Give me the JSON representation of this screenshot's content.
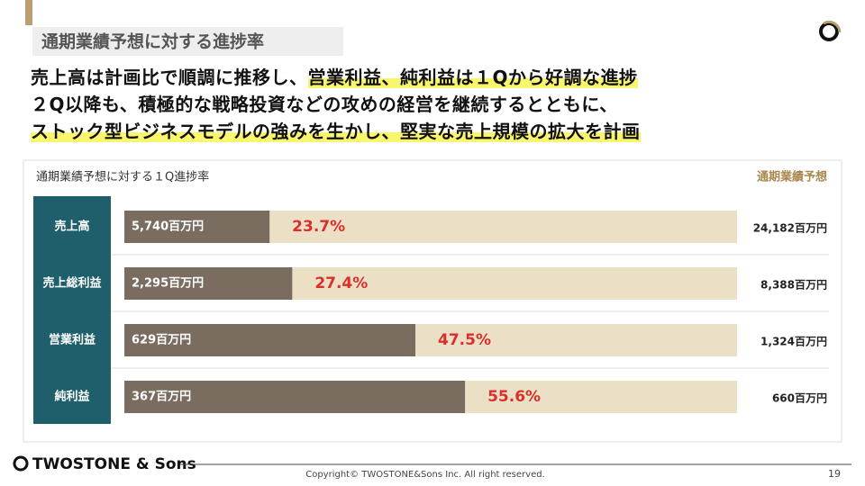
{
  "header": {
    "title": "通期業績予想に対する進捗率"
  },
  "headline": [
    [
      {
        "text": "売上高は計画比で順調に推移し、",
        "highlight": false
      },
      {
        "text": "営業利益、純利益は１Qから好調な進捗",
        "highlight": true
      }
    ],
    [
      {
        "text": "２Q以降も、積極的な戦略投資などの攻めの経営を継続するとともに、",
        "highlight": false
      }
    ],
    [
      {
        "text": "ストック型ビジネスモデルの強みを生かし、堅実な売上規模の拡大を計画",
        "highlight": true
      }
    ]
  ],
  "chart_data": {
    "type": "bar",
    "orientation": "horizontal",
    "title": "通期業績予想に対する１Q進捗率",
    "forecast_header": "通期業績予想",
    "categories": [
      "売上高",
      "売上総利益",
      "営業利益",
      "純利益"
    ],
    "values": [
      23.7,
      27.4,
      47.5,
      55.6
    ],
    "value_labels": [
      "23.7%",
      "27.4%",
      "47.5%",
      "55.6%"
    ],
    "actual_labels": [
      "5,740百万円",
      "2,295百万円",
      "629百万円",
      "367百万円"
    ],
    "forecast_labels": [
      "24,182百万円",
      "8,388百万円",
      "1,324百万円",
      "660百万円"
    ],
    "xlim": [
      0,
      100
    ],
    "color": "#7a6d60",
    "track_color": "#ebdfc5",
    "label_color": "#d9302c",
    "category_color": "#1f5f6b"
  },
  "footer": {
    "brand": "TWOSTONE & Sons",
    "copyright": "Copyright© TWOSTONE&Sons Inc. All right reserved.",
    "page": "19"
  }
}
